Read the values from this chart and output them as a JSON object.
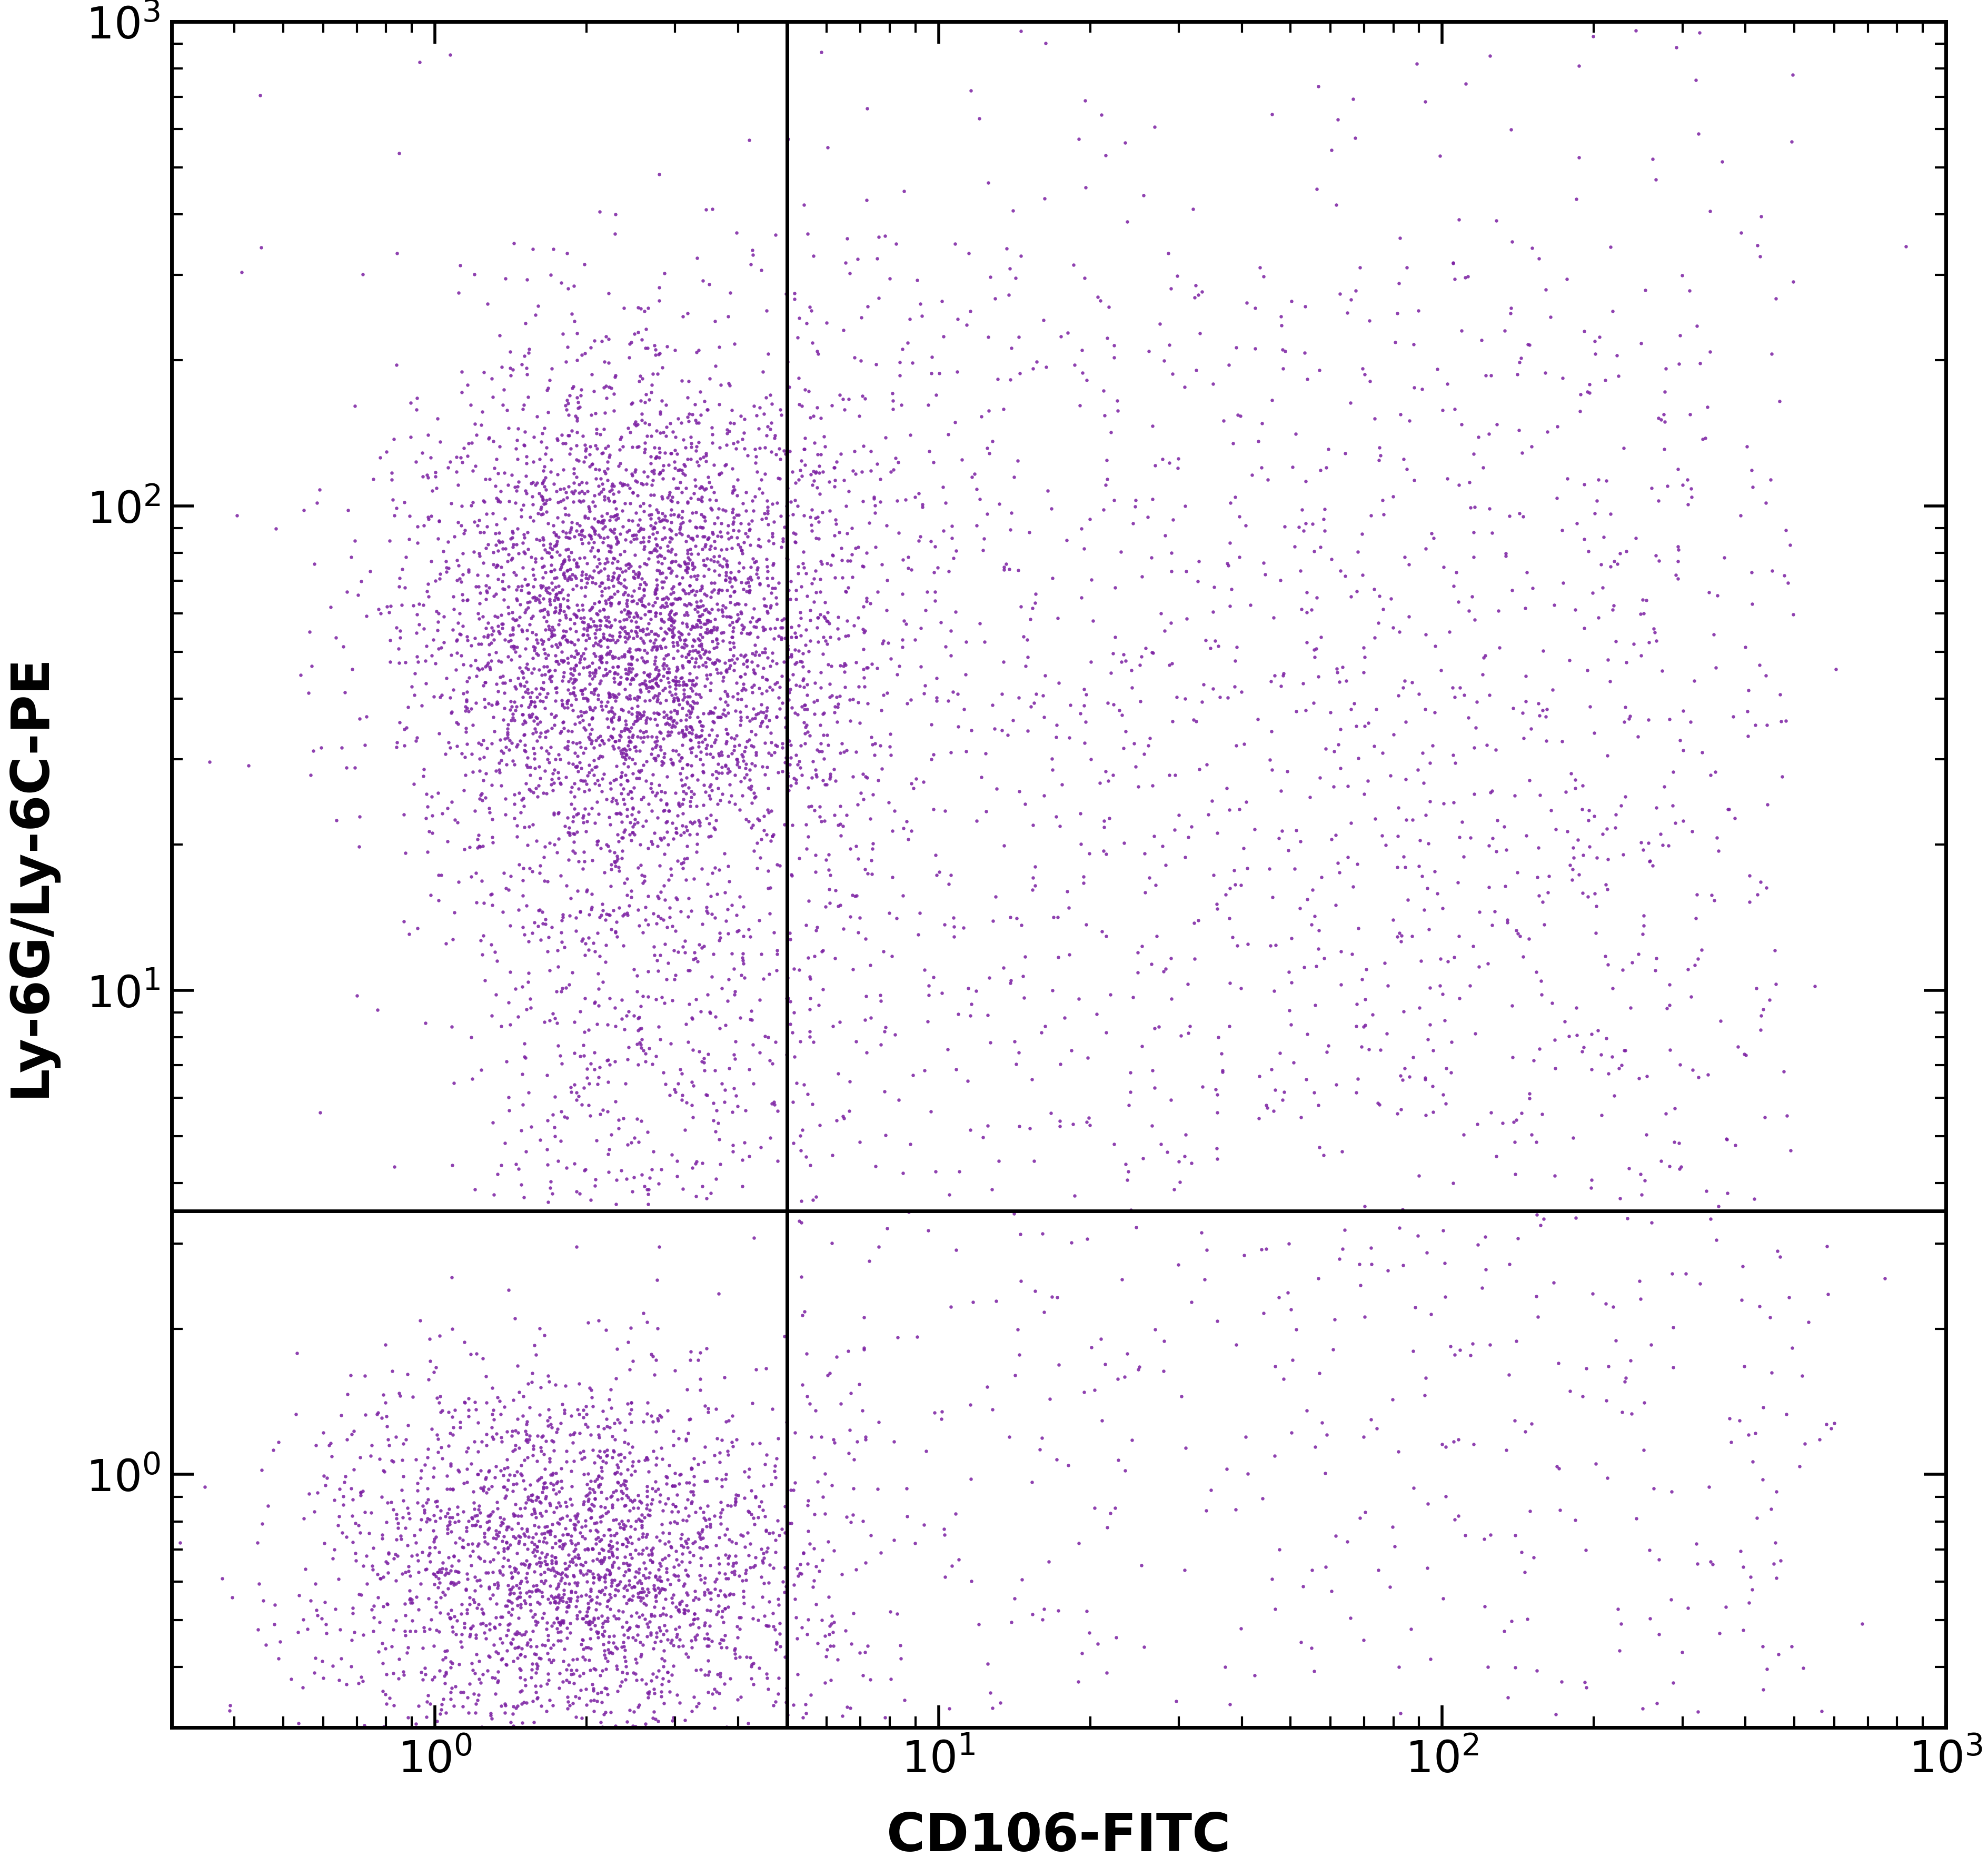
{
  "xlabel": "CD106-FITC",
  "ylabel": "Ly-6G/Ly-6C-PE",
  "xlim": [
    0.3,
    1000
  ],
  "ylim": [
    0.3,
    1000
  ],
  "dot_color": "#7B1FA2",
  "background_color": "#ffffff",
  "gate_x": 5.0,
  "gate_y": 3.5,
  "xlabel_fontsize": 72,
  "ylabel_fontsize": 72,
  "tick_fontsize": 60,
  "dot_size": 22,
  "dot_alpha": 0.85,
  "seed": 42
}
